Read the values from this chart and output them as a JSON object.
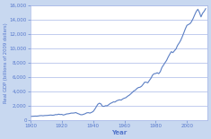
{
  "title": "",
  "xlabel": "Year",
  "ylabel": "Real GDP (billions of 2009 dollars)",
  "line_color": "#5b7fc4",
  "background_color": "#c8d8f0",
  "plot_bg_color": "#ffffff",
  "grid_color": "#a8b8e8",
  "text_color": "#5577cc",
  "ylim": [
    0,
    16000
  ],
  "xlim": [
    1900,
    2013
  ],
  "yticks": [
    0,
    2000,
    4000,
    6000,
    8000,
    10000,
    12000,
    14000,
    16000
  ],
  "xticks": [
    1900,
    1920,
    1940,
    1960,
    1980,
    2000
  ],
  "years": [
    1900,
    1901,
    1902,
    1903,
    1904,
    1905,
    1906,
    1907,
    1908,
    1909,
    1910,
    1911,
    1912,
    1913,
    1914,
    1915,
    1916,
    1917,
    1918,
    1919,
    1920,
    1921,
    1922,
    1923,
    1924,
    1925,
    1926,
    1927,
    1928,
    1929,
    1930,
    1931,
    1932,
    1933,
    1934,
    1935,
    1936,
    1937,
    1938,
    1939,
    1940,
    1941,
    1942,
    1943,
    1944,
    1945,
    1946,
    1947,
    1948,
    1949,
    1950,
    1951,
    1952,
    1953,
    1954,
    1955,
    1956,
    1957,
    1958,
    1959,
    1960,
    1961,
    1962,
    1963,
    1964,
    1965,
    1966,
    1967,
    1968,
    1969,
    1970,
    1971,
    1972,
    1973,
    1974,
    1975,
    1976,
    1977,
    1978,
    1979,
    1980,
    1981,
    1982,
    1983,
    1984,
    1985,
    1986,
    1987,
    1988,
    1989,
    1990,
    1991,
    1992,
    1993,
    1994,
    1995,
    1996,
    1997,
    1998,
    1999,
    2000,
    2001,
    2002,
    2003,
    2004,
    2005,
    2006,
    2007,
    2008,
    2009,
    2010,
    2011,
    2012
  ],
  "gdp": [
    560,
    570,
    585,
    600,
    595,
    620,
    660,
    675,
    645,
    680,
    690,
    700,
    730,
    750,
    720,
    740,
    810,
    800,
    870,
    820,
    840,
    750,
    810,
    900,
    920,
    960,
    1020,
    1020,
    1040,
    1090,
    980,
    900,
    800,
    790,
    860,
    940,
    1060,
    1080,
    1020,
    1120,
    1230,
    1520,
    1880,
    2240,
    2400,
    2300,
    1970,
    1960,
    2050,
    2040,
    2190,
    2360,
    2460,
    2580,
    2560,
    2720,
    2810,
    2870,
    2830,
    3000,
    3100,
    3170,
    3360,
    3490,
    3680,
    3880,
    4100,
    4210,
    4440,
    4580,
    4620,
    4760,
    5030,
    5330,
    5320,
    5240,
    5570,
    5870,
    6300,
    6500,
    6530,
    6640,
    6510,
    6800,
    7370,
    7700,
    8040,
    8360,
    8820,
    9220,
    9570,
    9440,
    9700,
    9950,
    10450,
    10770,
    11140,
    11640,
    12190,
    12760,
    13240,
    13360,
    13480,
    13780,
    14210,
    14720,
    15190,
    15480,
    15050,
    14420,
    14920,
    15190,
    15560
  ]
}
